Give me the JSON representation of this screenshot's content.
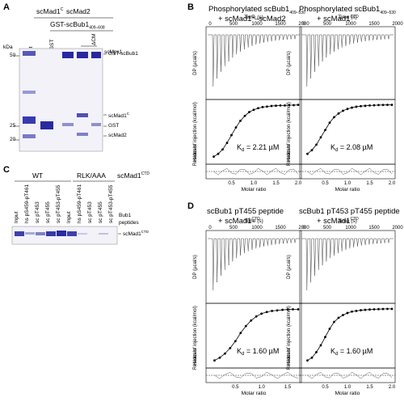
{
  "panels": {
    "A": {
      "label": "A",
      "top_left": "scMad1",
      "top_left_sup": "C",
      "top_right": "scMad2",
      "construct": "GST-scBub1",
      "construct_sub": "409–608",
      "lanes": [
        "Input",
        "GST",
        "–",
        "+",
        "+"
      ],
      "lane_mps1": "scMps1",
      "lane_dcm": "ΔCM",
      "kda": "kDa",
      "markers": [
        "50",
        "25",
        "20"
      ],
      "bands": [
        "GST-scBub1",
        "scMad1",
        "GST",
        "scMad2"
      ],
      "band_sup": "C"
    },
    "B": {
      "label": "B",
      "left_title_1": "Phosphorylated scBub1",
      "left_title_sub": "409–530",
      "left_title_2": "+ scMad1",
      "left_title_2b": "–scMad2",
      "right_title_1": "Phosphorylated scBub1",
      "right_title_sub": "409–530",
      "right_title_2": "+ scMad1",
      "kd_left": "K",
      "kd_left_val": "= 2.21 µM",
      "kd_right": "K",
      "kd_right_val": "= 2.08 µM",
      "time_label": "Time (s)",
      "time_ticks": [
        "0",
        "500",
        "1000",
        "1500",
        "2000"
      ],
      "dp_label": "DP (µcal/s)",
      "heats_label": "Heats of injection (kcal/mol)",
      "resid_label": "Residuals",
      "molar_label": "Molar ratio",
      "molar_ticks": [
        "0.5",
        "1.0",
        "1.5",
        "2.0"
      ]
    },
    "C": {
      "label": "C",
      "wt": "WT",
      "rlk": "RLK/AAA",
      "mad1": "scMad1",
      "mad1_sup": "CTD",
      "lanes": [
        "Input",
        "hs pS459-pT461",
        "sc pT453",
        "sc pT455",
        "sc pT453-pT455",
        "Input",
        "hs pS459-pT461",
        "sc pT453",
        "sc pT455",
        "sc pT453-pT455"
      ],
      "peptides_1": "Bub1",
      "peptides_2": "peptides",
      "band": "scMad1",
      "band_sup": "CTD"
    },
    "D": {
      "label": "D",
      "left_title_1": "scBub1 pT455 peptide",
      "left_title_2": "+ scMad1",
      "right_title_1": "scBub1 pT453 pT455 peptide",
      "right_title_2": "+ scMad1",
      "sup": "CTD",
      "kd_left": "K",
      "kd_left_val": "= 1.60 µM",
      "kd_right": "K",
      "kd_right_val": "= 1.60 µM"
    }
  },
  "chart_data": [
    {
      "type": "scatter",
      "panel": "B-left",
      "title": "Phosphorylated scBub1 409–530 + scMad1C–scMad2",
      "xlabel": "Molar ratio",
      "ylabel": "Heats of injection (kcal/mol)",
      "x": [
        0.1,
        0.2,
        0.3,
        0.4,
        0.5,
        0.6,
        0.7,
        0.8,
        0.9,
        1.0,
        1.1,
        1.2,
        1.3,
        1.4,
        1.5,
        1.6,
        1.7,
        1.8,
        1.9,
        2.0
      ],
      "y": [
        -9.5,
        -9.0,
        -8.2,
        -7.0,
        -5.6,
        -4.2,
        -3.0,
        -2.1,
        -1.4,
        -1.0,
        -0.7,
        -0.5,
        -0.4,
        -0.3,
        -0.25,
        -0.2,
        -0.2,
        -0.15,
        -0.15,
        -0.1
      ],
      "ylim": [
        -10,
        0
      ],
      "xlim": [
        0,
        2.0
      ],
      "kd": "2.21 µM"
    },
    {
      "type": "scatter",
      "panel": "B-right",
      "title": "Phosphorylated scBub1 409–530 + scMad1CTD",
      "xlabel": "Molar ratio",
      "ylabel": "Heats of injection (kcal/mol)",
      "x": [
        0.1,
        0.2,
        0.3,
        0.4,
        0.5,
        0.6,
        0.7,
        0.8,
        0.9,
        1.0,
        1.1,
        1.2,
        1.3,
        1.4,
        1.5,
        1.6,
        1.7,
        1.8,
        1.9,
        2.0
      ],
      "y": [
        -27,
        -25,
        -22,
        -18,
        -14,
        -10,
        -7,
        -5,
        -3.5,
        -2.5,
        -1.8,
        -1.3,
        -1.0,
        -0.8,
        -0.6,
        -0.5,
        -0.4,
        -0.35,
        -0.3,
        -0.3
      ],
      "ylim": [
        -30,
        0
      ],
      "xlim": [
        0,
        2.0
      ],
      "kd": "2.08 µM"
    },
    {
      "type": "scatter",
      "panel": "D-left",
      "title": "scBub1 pT455 peptide + scMad1CTD",
      "xlabel": "Molar ratio",
      "ylabel": "Heats of injection (kcal/mol)",
      "x": [
        0.1,
        0.2,
        0.3,
        0.4,
        0.5,
        0.6,
        0.7,
        0.8,
        0.9,
        1.0,
        1.1,
        1.2,
        1.3,
        1.4,
        1.5,
        1.6,
        1.7
      ],
      "y": [
        -19,
        -18,
        -16.5,
        -14.5,
        -12,
        -9,
        -6.5,
        -4.5,
        -3,
        -2,
        -1.4,
        -1.0,
        -0.8,
        -0.6,
        -0.5,
        -0.4,
        -0.4
      ],
      "ylim": [
        -20,
        0
      ],
      "xlim": [
        0,
        1.7
      ],
      "kd": "1.60 µM"
    },
    {
      "type": "scatter",
      "panel": "D-right",
      "title": "scBub1 pT453 pT455 peptide + scMad1CTD",
      "xlabel": "Molar ratio",
      "ylabel": "Heats of injection (kcal/mol)",
      "x": [
        0.1,
        0.2,
        0.3,
        0.4,
        0.5,
        0.6,
        0.7,
        0.8,
        0.9,
        1.0,
        1.1,
        1.2,
        1.3,
        1.4,
        1.5,
        1.6,
        1.7,
        1.8,
        1.9,
        2.0
      ],
      "y": [
        -38,
        -36,
        -32,
        -27,
        -21,
        -15,
        -10,
        -7,
        -5,
        -3.5,
        -2.5,
        -2,
        -1.5,
        -1.2,
        -1,
        -0.8,
        -0.7,
        -0.6,
        -0.5,
        -0.5
      ],
      "ylim": [
        -40,
        0
      ],
      "xlim": [
        0,
        2.0
      ],
      "kd": "1.60 µM"
    }
  ]
}
